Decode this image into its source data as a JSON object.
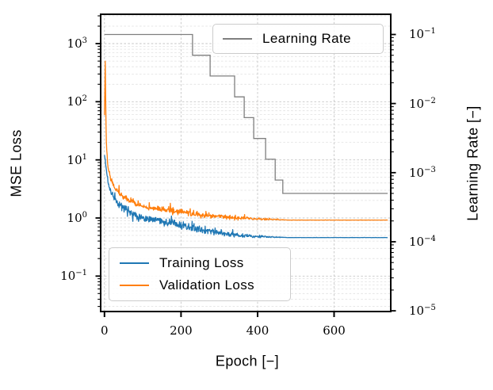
{
  "figure": {
    "background": "#ffffff",
    "axis_color": "#000000",
    "grid_major_color": "#c6c6c6",
    "grid_minor_color": "#e0e0e0"
  },
  "chart_data": {
    "type": "line",
    "title": "",
    "xlabel": "Epoch [−]",
    "ylabel_left": "MSE Loss",
    "ylabel_right": "Learning Rate [−]",
    "grid": "both-major-and-minor, dashed",
    "legend_top": {
      "label": "Learning Rate",
      "position": "upper right"
    },
    "legend_bottom": {
      "labels": [
        "Training Loss",
        "Validation Loss"
      ],
      "position": "lower left"
    },
    "x": {
      "lim": [
        -10,
        748
      ],
      "ticks": [
        0,
        200,
        400,
        600
      ]
    },
    "y_left": {
      "scale": "log",
      "lim_exp": [
        -1.61,
        3.505
      ],
      "tick_exps": [
        3,
        2,
        1,
        0,
        -1
      ]
    },
    "y_right": {
      "scale": "log",
      "lim_exp": [
        -5.01,
        -0.708
      ],
      "tick_exps": [
        -1,
        -2,
        -3,
        -4,
        -5
      ]
    },
    "series": [
      {
        "name": "Training Loss",
        "color": "#1f77b4",
        "axis": "left",
        "kind": "noisy-line",
        "noise_amp": 0.11,
        "seed": 11,
        "keypoints": [
          [
            0,
            12
          ],
          [
            2,
            10
          ],
          [
            5,
            6.5
          ],
          [
            10,
            4
          ],
          [
            15,
            3
          ],
          [
            20,
            2.5
          ],
          [
            30,
            2.0
          ],
          [
            40,
            1.7
          ],
          [
            60,
            1.4
          ],
          [
            80,
            1.15
          ],
          [
            100,
            1.0
          ],
          [
            130,
            0.95
          ],
          [
            160,
            0.85
          ],
          [
            200,
            0.75
          ],
          [
            240,
            0.65
          ],
          [
            280,
            0.58
          ],
          [
            320,
            0.53
          ],
          [
            360,
            0.5
          ],
          [
            400,
            0.48
          ],
          [
            440,
            0.47
          ],
          [
            480,
            0.46
          ],
          [
            740,
            0.46
          ]
        ]
      },
      {
        "name": "Validation Loss",
        "color": "#ff7f0e",
        "axis": "left",
        "kind": "noisy-line",
        "noise_amp": 0.075,
        "seed": 29,
        "keypoints": [
          [
            0,
            60
          ],
          [
            1,
            180
          ],
          [
            2,
            500
          ],
          [
            3,
            120
          ],
          [
            4,
            40
          ],
          [
            5,
            22
          ],
          [
            6,
            15
          ],
          [
            8,
            9
          ],
          [
            10,
            7
          ],
          [
            15,
            5
          ],
          [
            20,
            4
          ],
          [
            30,
            3
          ],
          [
            40,
            2.6
          ],
          [
            60,
            2.1
          ],
          [
            80,
            1.8
          ],
          [
            100,
            1.6
          ],
          [
            130,
            1.45
          ],
          [
            160,
            1.35
          ],
          [
            200,
            1.25
          ],
          [
            240,
            1.15
          ],
          [
            280,
            1.08
          ],
          [
            320,
            1.03
          ],
          [
            360,
            0.99
          ],
          [
            400,
            0.96
          ],
          [
            440,
            0.94
          ],
          [
            480,
            0.92
          ],
          [
            740,
            0.92
          ]
        ]
      },
      {
        "name": "Learning Rate",
        "color": "#7f7f7f",
        "axis": "right",
        "kind": "step",
        "x_end": 740,
        "steps": [
          [
            0,
            0.1
          ],
          [
            230,
            0.05
          ],
          [
            276,
            0.025
          ],
          [
            340,
            0.0125
          ],
          [
            365,
            0.00625
          ],
          [
            390,
            0.003125
          ],
          [
            421,
            0.0015625
          ],
          [
            446,
            0.00078125
          ],
          [
            466,
            0.0005
          ]
        ]
      }
    ]
  }
}
